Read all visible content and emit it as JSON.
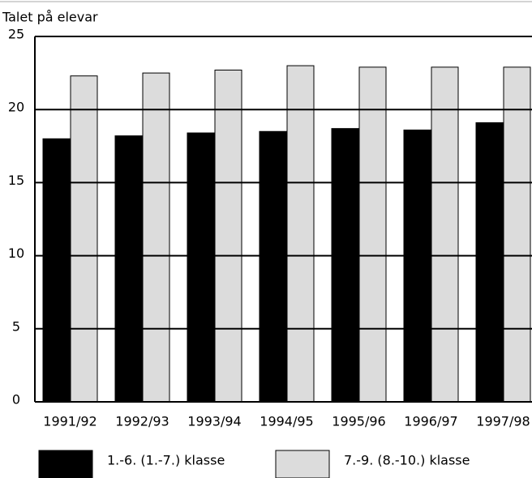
{
  "chart_data": {
    "type": "bar",
    "y_axis_label": "Talet på elevar",
    "categories": [
      "1991/92",
      "1992/93",
      "1993/94",
      "1994/95",
      "1995/96",
      "1996/97",
      "1997/98"
    ],
    "series": [
      {
        "name": "1.-6. (1.-7.) klasse",
        "color": "#000000",
        "values": [
          18.0,
          18.2,
          18.4,
          18.5,
          18.7,
          18.6,
          19.1
        ]
      },
      {
        "name": "7.-9. (8.-10.) klasse",
        "color": "#dcdcdc",
        "values": [
          22.3,
          22.5,
          22.7,
          23.0,
          22.9,
          22.9,
          22.9
        ]
      }
    ],
    "ylim": [
      0,
      25
    ],
    "yticks": [
      0,
      5,
      10,
      15,
      20,
      25
    ],
    "grid": true
  }
}
